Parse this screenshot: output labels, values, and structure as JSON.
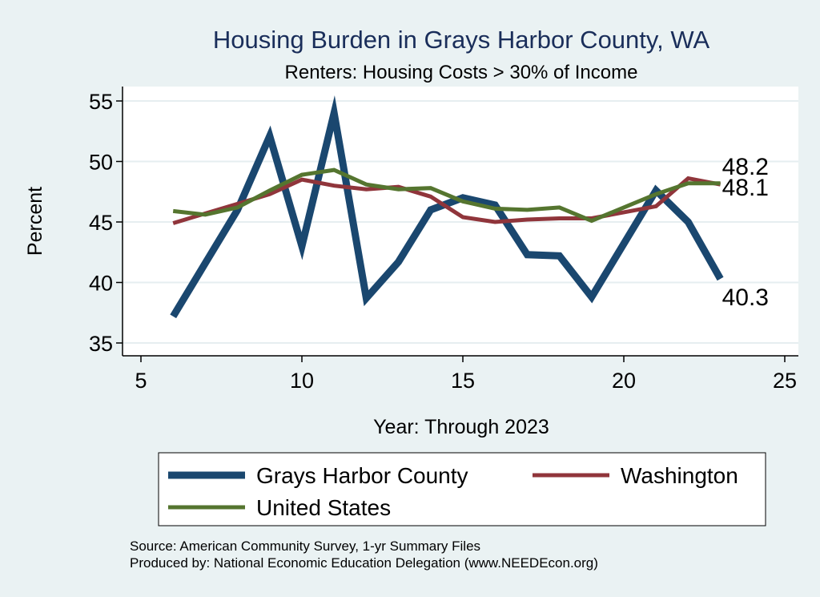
{
  "chart_data": {
    "type": "line",
    "title": "Housing Burden in Grays Harbor County, WA",
    "subtitle": "Renters: Housing Costs > 30% of Income",
    "xlabel": "Year: Through 2023",
    "ylabel": "Percent",
    "xlim": [
      5,
      25
    ],
    "ylim": [
      35,
      55
    ],
    "x_ticks": [
      5,
      10,
      15,
      20,
      25
    ],
    "y_ticks": [
      35,
      40,
      45,
      50,
      55
    ],
    "grid": true,
    "legend_position": "bottom",
    "series": [
      {
        "name": "Grays Harbor County",
        "color": "#1a476f",
        "x": [
          6,
          7,
          8,
          9,
          10,
          11,
          12,
          13,
          14,
          15,
          16,
          17,
          18,
          19,
          20,
          21,
          22,
          23
        ],
        "y": [
          37.2,
          41.6,
          46.0,
          52.1,
          43.0,
          54.0,
          38.7,
          41.7,
          46.0,
          47.0,
          46.4,
          42.3,
          42.2,
          38.8,
          43.2,
          47.6,
          45.0,
          40.3
        ],
        "end_label": "40.3"
      },
      {
        "name": "Washington",
        "color": "#90353b",
        "x": [
          6,
          7,
          8,
          9,
          10,
          11,
          12,
          13,
          14,
          15,
          16,
          17,
          18,
          19,
          20,
          21,
          22,
          23
        ],
        "y": [
          44.9,
          45.7,
          46.5,
          47.3,
          48.5,
          48.0,
          47.7,
          47.9,
          47.1,
          45.4,
          45.0,
          45.2,
          45.3,
          45.3,
          45.8,
          46.3,
          48.6,
          48.1
        ],
        "end_label": "48.1"
      },
      {
        "name": "United States",
        "color": "#55752f",
        "x": [
          6,
          7,
          8,
          9,
          10,
          11,
          12,
          13,
          14,
          15,
          16,
          17,
          18,
          19,
          20,
          21,
          22,
          23
        ],
        "y": [
          45.9,
          45.6,
          46.2,
          47.6,
          48.9,
          49.3,
          48.1,
          47.7,
          47.8,
          46.7,
          46.1,
          46.0,
          46.2,
          45.1,
          46.2,
          47.3,
          48.2,
          48.2
        ],
        "end_label": "48.2"
      }
    ],
    "notes": [
      "Source: American Community Survey, 1-yr Summary Files",
      "Produced by: National Economic Education Delegation (www.NEEDEcon.org)"
    ]
  }
}
